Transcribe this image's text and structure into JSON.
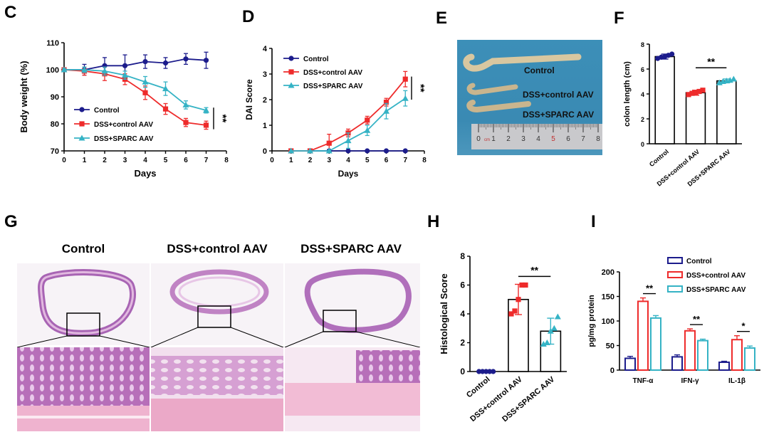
{
  "panels": {
    "C": "C",
    "D": "D",
    "E": "E",
    "F": "F",
    "G": "G",
    "H": "H",
    "I": "I"
  },
  "colors": {
    "control": "#1c1c8c",
    "dss_control": "#ee2b2b",
    "dss_sparc": "#35b3c5"
  },
  "photo_E": {
    "labels": [
      "Control",
      "DSS+control AAV",
      "DSS+SPARC AAV"
    ],
    "ruler_numbers": [
      "0",
      "1",
      "2",
      "3",
      "4",
      "5",
      "6",
      "7",
      "8"
    ],
    "ruler_unit": "cm"
  },
  "histology_G": {
    "column_titles": [
      "Control",
      "DSS+control AAV",
      "DSS+SPARC AAV"
    ]
  },
  "chart_data": [
    {
      "id": "C",
      "type": "line",
      "xlabel": "Days",
      "ylabel": "Body weight (%)",
      "xlim": [
        0,
        8
      ],
      "ylim": [
        70,
        110
      ],
      "xticks": [
        0,
        1,
        2,
        3,
        4,
        5,
        6,
        7,
        8
      ],
      "yticks": [
        70,
        80,
        90,
        100,
        110
      ],
      "x": [
        0,
        1,
        2,
        3,
        4,
        5,
        6,
        7
      ],
      "series": [
        {
          "name": "Control",
          "marker": "circle",
          "values": [
            100,
            100,
            101.5,
            101.5,
            103,
            102.5,
            104,
            103.5
          ],
          "errors": [
            0.5,
            2,
            3,
            4,
            2.5,
            2,
            2,
            3
          ]
        },
        {
          "name": "DSS+control AAV",
          "marker": "square",
          "values": [
            100,
            99.5,
            98.5,
            96.5,
            91.5,
            85.5,
            80.5,
            79.5
          ],
          "errors": [
            0.5,
            1.5,
            2.5,
            2,
            2.5,
            2,
            1.5,
            1.5
          ]
        },
        {
          "name": "DSS+SPARC AAV",
          "marker": "triangle",
          "values": [
            100,
            100,
            99.5,
            98,
            95.5,
            93,
            87,
            85
          ],
          "errors": [
            0.5,
            1,
            1.5,
            1.5,
            2,
            2.5,
            1.5,
            1
          ]
        }
      ],
      "legend": "left",
      "significance": "**"
    },
    {
      "id": "D",
      "type": "line",
      "xlabel": "Days",
      "ylabel": "DAI Score",
      "xlim": [
        0,
        8
      ],
      "ylim": [
        0,
        4
      ],
      "xticks": [
        0,
        1,
        2,
        3,
        4,
        5,
        6,
        7,
        8
      ],
      "yticks": [
        0,
        1,
        2,
        3,
        4
      ],
      "x": [
        1,
        2,
        3,
        4,
        5,
        6,
        7
      ],
      "series": [
        {
          "name": "Control",
          "marker": "circle",
          "values": [
            0,
            0,
            0,
            0,
            0,
            0,
            0
          ],
          "errors": [
            0,
            0,
            0,
            0,
            0,
            0,
            0
          ]
        },
        {
          "name": "DSS+control AAV",
          "marker": "square",
          "values": [
            0,
            0,
            0.3,
            0.7,
            1.2,
            1.9,
            2.8
          ],
          "errors": [
            0,
            0,
            0.35,
            0.15,
            0.15,
            0.15,
            0.3
          ]
        },
        {
          "name": "DSS+SPARC AAV",
          "marker": "triangle",
          "values": [
            0,
            0,
            0,
            0.4,
            0.8,
            1.55,
            2.05
          ],
          "errors": [
            0,
            0,
            0,
            0.3,
            0.2,
            0.3,
            0.3
          ]
        }
      ],
      "legend": "top-left",
      "significance": "**"
    },
    {
      "id": "F",
      "type": "bar",
      "ylabel": "colon length (cm)",
      "ylim": [
        0,
        8
      ],
      "yticks": [
        0,
        2,
        4,
        6,
        8
      ],
      "categories": [
        "Control",
        "DSS+control AAV",
        "DSS+SPARC AAV"
      ],
      "values": [
        7.0,
        4.1,
        5.05
      ],
      "errors": [
        0.2,
        0.2,
        0.15
      ],
      "points": [
        [
          6.85,
          6.95,
          7.0,
          7.1,
          7.2
        ],
        [
          3.95,
          4.05,
          4.1,
          4.2,
          4.3
        ],
        [
          4.9,
          5.0,
          5.05,
          5.1,
          5.2
        ]
      ],
      "significance": "**"
    },
    {
      "id": "H",
      "type": "bar",
      "ylabel": "Histological Score",
      "ylim": [
        0,
        8
      ],
      "yticks": [
        0,
        2,
        4,
        6,
        8
      ],
      "categories": [
        "Control",
        "DSS+control AAV",
        "DSS+SPARC AAV"
      ],
      "values": [
        0,
        5.0,
        2.8
      ],
      "errors": [
        0,
        1.05,
        0.9
      ],
      "points": [
        [
          0,
          0,
          0,
          0,
          0
        ],
        [
          4,
          4.2,
          5,
          6,
          6
        ],
        [
          1.9,
          2,
          2.8,
          3,
          3.8
        ]
      ],
      "significance": "**"
    },
    {
      "id": "I",
      "type": "bar",
      "ylabel": "pg/mg protein",
      "ylim": [
        0,
        200
      ],
      "yticks": [
        0,
        50,
        100,
        150,
        200
      ],
      "categories": [
        "TNF-α",
        "IFN-γ",
        "IL-1β"
      ],
      "series": [
        {
          "name": "Control",
          "values": [
            24,
            27,
            16
          ],
          "errors": [
            4,
            4,
            2
          ]
        },
        {
          "name": "DSS+control AAV",
          "values": [
            140,
            80,
            62
          ],
          "errors": [
            7,
            4,
            8
          ]
        },
        {
          "name": "DSS+SPARC AAV",
          "values": [
            106,
            60,
            45
          ],
          "errors": [
            5,
            3,
            4
          ]
        }
      ],
      "significance": [
        "**",
        "**",
        "*"
      ],
      "legend": "top-right"
    }
  ]
}
